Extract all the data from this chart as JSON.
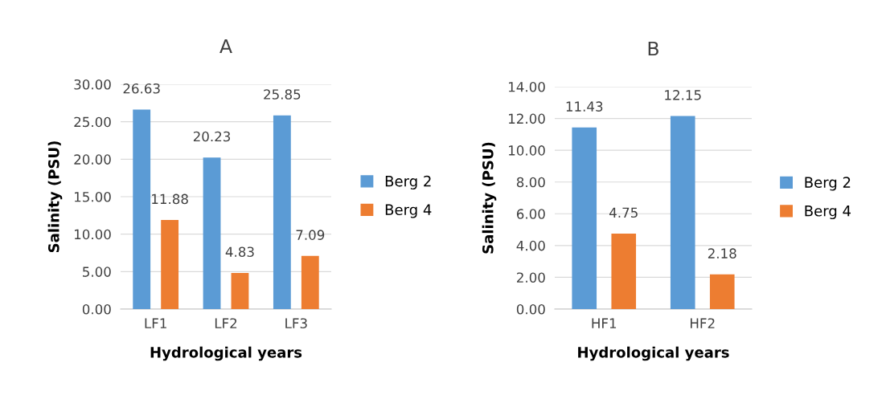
{
  "chart_data": [
    {
      "type": "bar",
      "title": "A",
      "xlabel": "Hydrological years",
      "ylabel": "Salinity (PSU)",
      "categories": [
        "LF1",
        "LF2",
        "LF3"
      ],
      "series": [
        {
          "name": "Berg 2",
          "color": "#5b9bd5",
          "values": [
            26.63,
            20.23,
            25.85
          ]
        },
        {
          "name": "Berg 4",
          "color": "#ed7d31",
          "values": [
            11.88,
            4.83,
            7.09
          ]
        }
      ],
      "ylim": [
        0,
        30
      ],
      "yticks": [
        {
          "value": 0,
          "label": "0.00"
        },
        {
          "value": 5,
          "label": "5.00"
        },
        {
          "value": 10,
          "label": "10.00"
        },
        {
          "value": 15,
          "label": "15.00"
        },
        {
          "value": 20,
          "label": "20.00"
        },
        {
          "value": 25,
          "label": "25.00"
        },
        {
          "value": 30,
          "label": "30.00"
        }
      ],
      "grid": "y",
      "legend": "right",
      "data_labels": true
    },
    {
      "type": "bar",
      "title": "B",
      "xlabel": "Hydrological years",
      "ylabel": "Salinity (PSU)",
      "categories": [
        "HF1",
        "HF2"
      ],
      "series": [
        {
          "name": "Berg 2",
          "color": "#5b9bd5",
          "values": [
            11.43,
            12.15
          ]
        },
        {
          "name": "Berg 4",
          "color": "#ed7d31",
          "values": [
            4.75,
            2.18
          ]
        }
      ],
      "ylim": [
        0,
        14
      ],
      "yticks": [
        {
          "value": 0,
          "label": "0.00"
        },
        {
          "value": 2,
          "label": "2.00"
        },
        {
          "value": 4,
          "label": "4.00"
        },
        {
          "value": 6,
          "label": "6.00"
        },
        {
          "value": 8,
          "label": "8.00"
        },
        {
          "value": 10,
          "label": "10.00"
        },
        {
          "value": 12,
          "label": "12.00"
        },
        {
          "value": 14,
          "label": "14.00"
        }
      ],
      "grid": "y",
      "legend": "right",
      "data_labels": true
    }
  ]
}
